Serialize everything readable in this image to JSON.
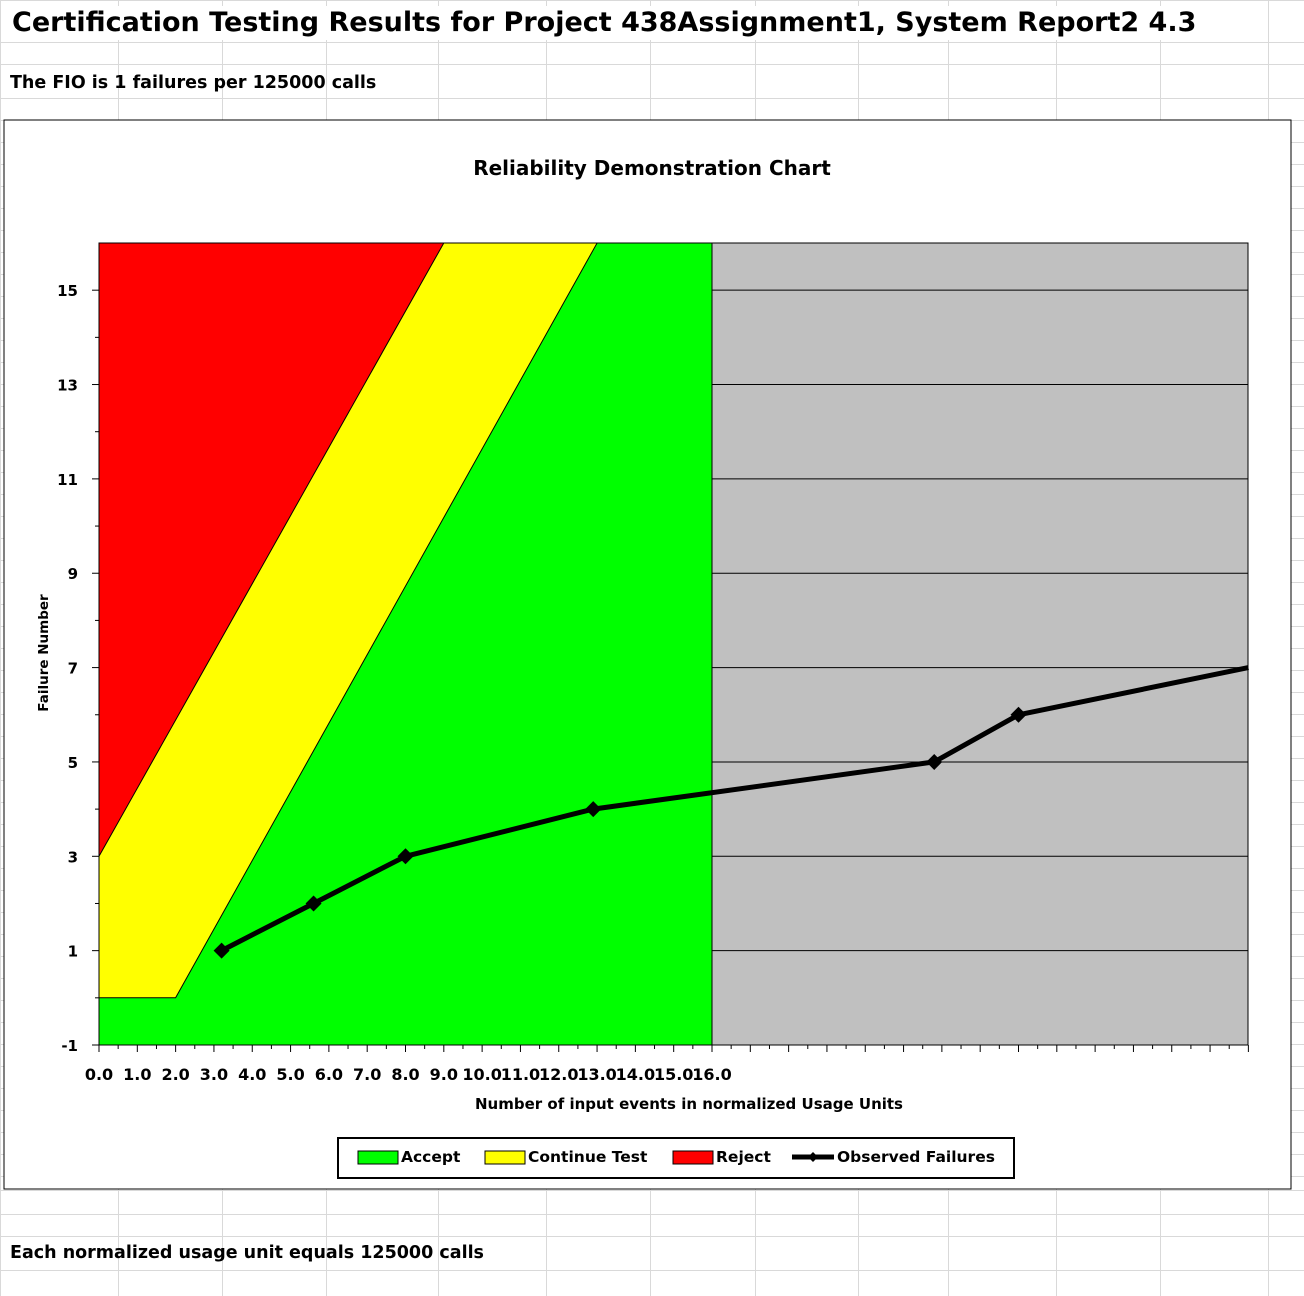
{
  "sheet": {
    "title": "Certification Testing Results for Project 438Assignment1, System Report2 4.3",
    "fio_note": "The FIO is 1 failures per 125000 calls",
    "footer_note": "Each normalized usage unit equals 125000 calls"
  },
  "chart_data": {
    "type": "area",
    "title": "Reliability Demonstration Chart",
    "xlabel": "Number of input events in normalized Usage Units",
    "ylabel": "Failure Number",
    "xlim": [
      0,
      30
    ],
    "ylim": [
      -1,
      16
    ],
    "x_tick_labels": [
      "0.0",
      "1.0",
      "2.0",
      "3.0",
      "4.0",
      "5.0",
      "6.0",
      "7.0",
      "8.0",
      "9.0",
      "10.0",
      "11.0",
      "12.0",
      "13.0",
      "14.0",
      "15.0",
      "16.0"
    ],
    "y_tick_labels": [
      "-1",
      "1",
      "3",
      "5",
      "7",
      "9",
      "11",
      "13",
      "15"
    ],
    "y_tick_values": [
      -1,
      1,
      3,
      5,
      7,
      9,
      11,
      13,
      15
    ],
    "grid": true,
    "legend_position": "bottom",
    "regions": {
      "reject_boundary": [
        [
          0,
          3
        ],
        [
          9.0,
          16
        ]
      ],
      "accept_boundary": [
        [
          0,
          0
        ],
        [
          2.0,
          0
        ],
        [
          13.0,
          16
        ]
      ],
      "demo_end_x": 16.0
    },
    "series": [
      {
        "name": "Observed Failures",
        "points": [
          [
            3.2,
            1
          ],
          [
            5.6,
            2
          ],
          [
            8.0,
            3
          ],
          [
            12.9,
            4
          ],
          [
            21.8,
            5
          ],
          [
            24.0,
            6
          ],
          [
            30.0,
            7
          ]
        ]
      }
    ],
    "legend": [
      "Accept",
      "Continue Test",
      "Reject",
      "Observed Failures"
    ],
    "colors": {
      "accept": "#00ff00",
      "continue": "#ffff00",
      "reject": "#ff0000",
      "beyond": "#c0c0c0",
      "observed": "#000000"
    }
  }
}
